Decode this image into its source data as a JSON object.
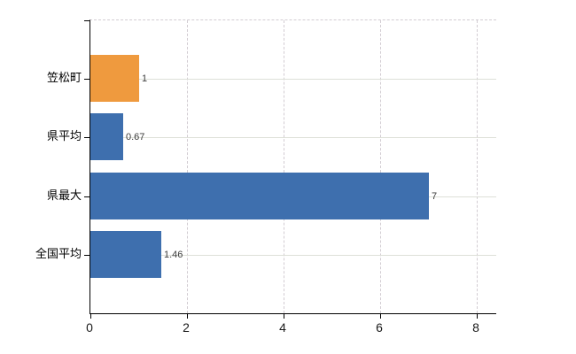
{
  "chart_data": {
    "type": "bar",
    "orientation": "horizontal",
    "title": "",
    "xlabel": "",
    "ylabel": "",
    "categories": [
      "笠松町",
      "県平均",
      "県最大",
      "全国平均"
    ],
    "values": [
      1,
      0.67,
      7,
      1.46
    ],
    "value_labels": [
      "1",
      "0.67",
      "7",
      "1.46"
    ],
    "bar_colors": [
      "#ef9a3e",
      "#3e6fae",
      "#3e6fae",
      "#3e6fae"
    ],
    "xlim": [
      0,
      8.4
    ],
    "x_ticks": [
      0,
      2,
      4,
      6,
      8
    ],
    "x_tick_labels": [
      "0",
      "2",
      "4",
      "6",
      "8"
    ],
    "grid": {
      "vertical": "dashed at each x tick",
      "horizontal": "solid at each category center",
      "top_boundary": "dashed"
    },
    "legend": "none"
  },
  "colors": {
    "background": "#ffffff",
    "highlight_bar": "#ef9a3e",
    "default_bar": "#3e6fae",
    "axis": "#000000",
    "grid_vertical": "#d2ccd2",
    "grid_horizontal": "#dde0d8",
    "category_text": "#000000",
    "value_text": "#3c3c3c",
    "tick_text": "#1a1a1a"
  }
}
